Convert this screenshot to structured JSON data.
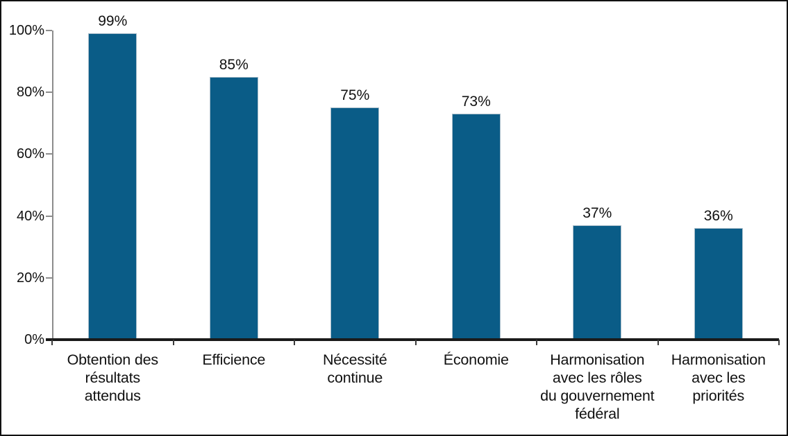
{
  "figure": {
    "background": "#ffffff",
    "border_color": "#111111"
  },
  "chart_data": {
    "type": "bar",
    "categories": [
      "Obtention des\nrésultats\nattendus",
      "Efficience",
      "Nécessité\ncontinue",
      "Économie",
      "Harmonisation\navec les rôles\ndu gouvernement\nfédéral",
      "Harmonisation\navec les\npriorités"
    ],
    "values": [
      99,
      85,
      75,
      73,
      37,
      36
    ],
    "value_labels": [
      "99%",
      "85%",
      "75%",
      "73%",
      "37%",
      "36%"
    ],
    "y_ticks": [
      "0%",
      "20%",
      "40%",
      "60%",
      "80%",
      "100%"
    ],
    "ylim": [
      0,
      100
    ],
    "grid": false,
    "legend": false,
    "value_labels_position": "above",
    "bar_color": "#0A5C87",
    "bar_border_color": "#A9BDCA",
    "x_axis_color": "#1A1A1A",
    "y_axis_color": "#8C8C8C",
    "x_tick_color": "#3A3A3A",
    "text_color": "#111111"
  }
}
